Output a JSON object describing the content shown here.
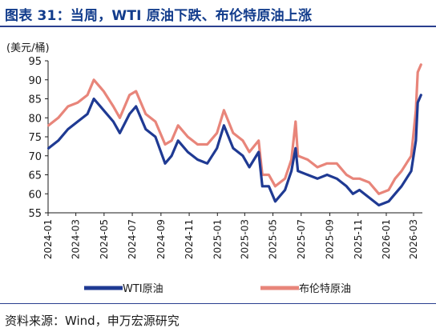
{
  "figure": {
    "title": "图表 31：当周，WTI 原油下跌、布伦特原油上涨",
    "source": "资料来源：Wind，申万宏源研究"
  },
  "chart_data": {
    "type": "line",
    "title": "图表 31：当周，WTI 原油下跌、布伦特原油上涨",
    "ylabel": "(美元/桶)",
    "xlabel": "",
    "ylim": [
      55,
      95
    ],
    "yticks": [
      55,
      60,
      65,
      70,
      75,
      80,
      85,
      90,
      95
    ],
    "xticks": [
      "2024-01",
      "2024-03",
      "2024-05",
      "2024-07",
      "2024-09",
      "2024-11",
      "2025-01",
      "2025-03",
      "2025-05",
      "2025-07",
      "2025-09",
      "2025-11",
      "2026-01",
      "2026-03"
    ],
    "xlim": [
      "2024-01-01",
      "2026-03-20"
    ],
    "legend": "bottom",
    "grid": false,
    "x": [
      "2024-01-02",
      "2024-01-23",
      "2024-02-13",
      "2024-03-05",
      "2024-03-26",
      "2024-04-09",
      "2024-04-30",
      "2024-05-21",
      "2024-06-04",
      "2024-06-25",
      "2024-07-09",
      "2024-07-30",
      "2024-08-20",
      "2024-09-10",
      "2024-09-24",
      "2024-10-08",
      "2024-10-29",
      "2024-11-19",
      "2024-12-10",
      "2024-12-31",
      "2025-01-15",
      "2025-02-04",
      "2025-02-25",
      "2025-03-11",
      "2025-03-31",
      "2025-04-08",
      "2025-04-22",
      "2025-05-06",
      "2025-05-27",
      "2025-06-10",
      "2025-06-19",
      "2025-06-24",
      "2025-07-15",
      "2025-08-05",
      "2025-08-26",
      "2025-09-16",
      "2025-10-07",
      "2025-10-21",
      "2025-11-04",
      "2025-11-25",
      "2025-12-16",
      "2026-01-06",
      "2026-01-20",
      "2026-02-03",
      "2026-02-24",
      "2026-03-06",
      "2026-03-10",
      "2026-03-17"
    ],
    "series": [
      {
        "name": "WTI原油",
        "color": "#1f3a93",
        "values": [
          72,
          74,
          77,
          79,
          81,
          85,
          82,
          79,
          76,
          81,
          83,
          77,
          75,
          68,
          70,
          74,
          71,
          69,
          68,
          72,
          78,
          72,
          70,
          67,
          71,
          62,
          62,
          58,
          61,
          66,
          72,
          66,
          65,
          64,
          65,
          64,
          62,
          60,
          61,
          59,
          57,
          58,
          60,
          62,
          66,
          74,
          84,
          86
        ]
      },
      {
        "name": "布伦特原油",
        "color": "#e8857a",
        "values": [
          78,
          80,
          83,
          84,
          86,
          90,
          87,
          83,
          80,
          86,
          87,
          81,
          79,
          73,
          74,
          78,
          75,
          73,
          73,
          76,
          82,
          76,
          74,
          71,
          74,
          65,
          65,
          62,
          64,
          69,
          79,
          70,
          69,
          67,
          68,
          68,
          65,
          64,
          64,
          63,
          60,
          61,
          64,
          66,
          70,
          82,
          92,
          94
        ]
      }
    ]
  }
}
